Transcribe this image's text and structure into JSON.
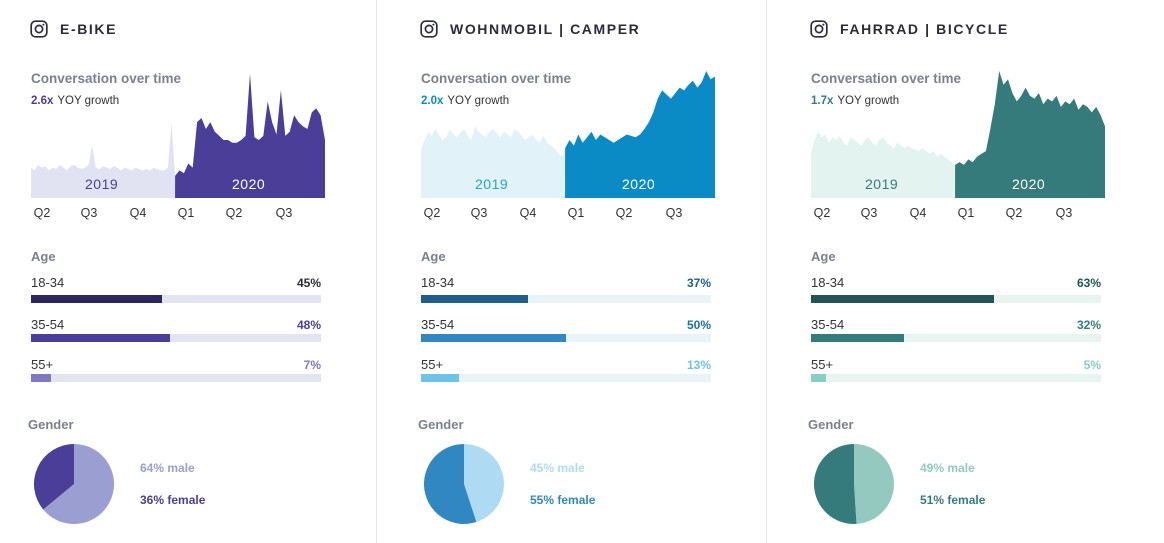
{
  "subtitle": "Conversation over time",
  "yoy_label": "YOY growth",
  "quarters": [
    "Q2",
    "Q3",
    "Q4",
    "Q1",
    "Q2",
    "Q3"
  ],
  "age_title": "Age",
  "gender_title": "Gender",
  "panels": [
    {
      "title": "E-BIKE",
      "yoy_value": "2.6x",
      "year_2019": "2019",
      "year_2020": "2020",
      "colors": {
        "light": "#e1e3f2",
        "dark": "#4a3e99",
        "accent": "#4a3e99",
        "bar1": "#2e2660",
        "bar2": "#4a3e99",
        "bar3": "#8079c2",
        "pct1": "#2b2b3a",
        "pct2": "#4a3e99",
        "pct3": "#8079c2",
        "track": "#e3e4ef",
        "pie_male": "#9b9ed0",
        "pie_female": "#4a3e99",
        "leg_male": "#9b9ed0",
        "leg_female": "#4a3e99",
        "yr2019": "#4a3e99",
        "yr2020": "#ffffff"
      },
      "ages": [
        {
          "label": "18-34",
          "pct": "45%",
          "value": 45
        },
        {
          "label": "35-54",
          "pct": "48%",
          "value": 48
        },
        {
          "label": "55+",
          "pct": "7%",
          "value": 7
        }
      ],
      "male_pct": 64,
      "female_pct": 36,
      "male_label": "64% male",
      "female_label": "36% female",
      "split": 0.49,
      "series_2019": [
        0.22,
        0.2,
        0.24,
        0.22,
        0.23,
        0.2,
        0.22,
        0.21,
        0.24,
        0.22,
        0.2,
        0.23,
        0.24,
        0.22,
        0.21,
        0.22,
        0.24,
        0.38,
        0.22,
        0.21,
        0.23,
        0.22,
        0.21,
        0.23,
        0.22,
        0.2,
        0.22,
        0.21,
        0.2,
        0.22,
        0.21,
        0.2,
        0.21,
        0.2,
        0.22,
        0.21,
        0.2,
        0.2,
        0.22,
        0.55,
        0.16
      ],
      "series_2020": [
        0.16,
        0.2,
        0.18,
        0.25,
        0.22,
        0.55,
        0.58,
        0.5,
        0.55,
        0.48,
        0.45,
        0.42,
        0.42,
        0.4,
        0.4,
        0.42,
        0.45,
        0.9,
        0.44,
        0.42,
        0.45,
        0.7,
        0.55,
        0.46,
        0.78,
        0.45,
        0.48,
        0.6,
        0.55,
        0.52,
        0.5,
        0.62,
        0.65,
        0.6,
        0.42
      ]
    },
    {
      "title": "WOHNMOBIL | CAMPER",
      "yoy_value": "2.0x",
      "year_2019": "2019",
      "year_2020": "2020",
      "colors": {
        "light": "#e1f3f8",
        "dark": "#0a8bc6",
        "accent": "#0a8bc6",
        "bar1": "#1d5e8c",
        "bar2": "#3087c2",
        "bar3": "#6cc3ea",
        "pct1": "#1d5e8c",
        "pct2": "#1d6fa6",
        "pct3": "#6cc3ea",
        "track": "#eaf3f8",
        "pie_male": "#aedbf3",
        "pie_female": "#3087c2",
        "leg_male": "#aedbf3",
        "leg_female": "#3087c2",
        "yr2019": "#2ca0cf",
        "yr2020": "#ffffff"
      },
      "ages": [
        {
          "label": "18-34",
          "pct": "37%",
          "value": 37
        },
        {
          "label": "35-54",
          "pct": "50%",
          "value": 50
        },
        {
          "label": "55+",
          "pct": "13%",
          "value": 13
        }
      ],
      "male_pct": 45,
      "female_pct": 55,
      "male_label": "45% male",
      "female_label": "55% female",
      "split": 0.49,
      "series_2019": [
        0.35,
        0.42,
        0.48,
        0.45,
        0.5,
        0.46,
        0.42,
        0.44,
        0.5,
        0.46,
        0.44,
        0.48,
        0.5,
        0.45,
        0.42,
        0.52,
        0.48,
        0.46,
        0.44,
        0.48,
        0.5,
        0.47,
        0.44,
        0.48,
        0.46,
        0.44,
        0.5,
        0.48,
        0.45,
        0.42,
        0.44,
        0.46,
        0.42,
        0.4,
        0.45,
        0.4,
        0.38,
        0.36,
        0.33,
        0.3,
        0.35
      ],
      "series_2020": [
        0.36,
        0.42,
        0.38,
        0.46,
        0.4,
        0.44,
        0.48,
        0.42,
        0.46,
        0.44,
        0.42,
        0.4,
        0.42,
        0.44,
        0.46,
        0.45,
        0.44,
        0.46,
        0.5,
        0.55,
        0.62,
        0.72,
        0.78,
        0.75,
        0.72,
        0.76,
        0.8,
        0.78,
        0.82,
        0.85,
        0.8,
        0.84,
        0.92,
        0.86,
        0.88
      ]
    },
    {
      "title": "FAHRRAD | BICYCLE",
      "yoy_value": "1.7x",
      "year_2019": "2019",
      "year_2020": "2020",
      "colors": {
        "light": "#e3f3ef",
        "dark": "#357b7b",
        "accent": "#357b7b",
        "bar1": "#245555",
        "bar2": "#357b7b",
        "bar3": "#86cfc2",
        "pct1": "#245555",
        "pct2": "#357b7b",
        "pct3": "#86cfc2",
        "track": "#e7f4f0",
        "pie_male": "#93c9bf",
        "pie_female": "#357b7b",
        "leg_male": "#93c9bf",
        "leg_female": "#357b7b",
        "yr2019": "#357b7b",
        "yr2020": "#ffffff"
      },
      "ages": [
        {
          "label": "18-34",
          "pct": "63%",
          "value": 63
        },
        {
          "label": "35-54",
          "pct": "32%",
          "value": 32
        },
        {
          "label": "55+",
          "pct": "5%",
          "value": 5
        }
      ],
      "male_pct": 49,
      "female_pct": 51,
      "male_label": "49% male",
      "female_label": "51% female",
      "split": 0.49,
      "series_2019": [
        0.32,
        0.42,
        0.48,
        0.44,
        0.46,
        0.4,
        0.44,
        0.42,
        0.45,
        0.4,
        0.38,
        0.44,
        0.42,
        0.4,
        0.38,
        0.42,
        0.44,
        0.4,
        0.38,
        0.42,
        0.44,
        0.4,
        0.38,
        0.36,
        0.4,
        0.38,
        0.36,
        0.38,
        0.36,
        0.35,
        0.34,
        0.36,
        0.34,
        0.32,
        0.34,
        0.3,
        0.32,
        0.3,
        0.28,
        0.26,
        0.24
      ],
      "series_2020": [
        0.24,
        0.26,
        0.24,
        0.28,
        0.26,
        0.3,
        0.32,
        0.34,
        0.5,
        0.68,
        0.92,
        0.82,
        0.86,
        0.76,
        0.7,
        0.74,
        0.8,
        0.74,
        0.72,
        0.76,
        0.68,
        0.72,
        0.7,
        0.74,
        0.66,
        0.7,
        0.68,
        0.72,
        0.64,
        0.68,
        0.66,
        0.62,
        0.66,
        0.6,
        0.52
      ]
    }
  ]
}
